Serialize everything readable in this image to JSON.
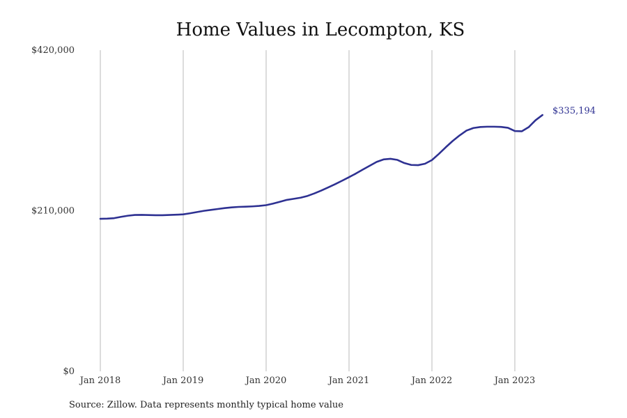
{
  "chart_data": {
    "type": "line",
    "title": "Home Values in Lecompton, KS",
    "xlabel": "",
    "ylabel": "",
    "x_tick_labels": [
      "Jan 2018",
      "Jan 2019",
      "Jan 2020",
      "Jan 2021",
      "Jan 2022",
      "Jan 2023"
    ],
    "y_tick_labels": [
      "$420,000",
      "$210,000",
      "$0"
    ],
    "ylim": [
      0,
      420000
    ],
    "xlim": [
      "2018-01",
      "2023-12"
    ],
    "grid": "vertical",
    "legend": "none",
    "end_label": "$335,194",
    "source": "Source: Zillow. Data represents monthly typical home value",
    "line_color": "#2e3192",
    "series": [
      {
        "x": [
          "2018-01",
          "2018-02",
          "2018-03",
          "2018-04",
          "2018-05",
          "2018-06",
          "2018-07",
          "2018-08",
          "2018-09",
          "2018-10",
          "2018-11",
          "2018-12",
          "2019-01",
          "2019-02",
          "2019-03",
          "2019-04",
          "2019-05",
          "2019-06",
          "2019-07",
          "2019-08",
          "2019-09",
          "2019-10",
          "2019-11",
          "2019-12",
          "2020-01",
          "2020-02",
          "2020-03",
          "2020-04",
          "2020-05",
          "2020-06",
          "2020-07",
          "2020-08",
          "2020-09",
          "2020-10",
          "2020-11",
          "2020-12",
          "2021-01",
          "2021-02",
          "2021-03",
          "2021-04",
          "2021-05",
          "2021-06",
          "2021-07",
          "2021-08",
          "2021-09",
          "2021-10",
          "2021-11",
          "2021-12",
          "2022-01",
          "2022-02",
          "2022-03",
          "2022-04",
          "2022-05",
          "2022-06",
          "2022-07",
          "2022-08",
          "2022-09",
          "2022-10",
          "2022-11",
          "2022-12",
          "2023-01",
          "2023-02",
          "2023-03",
          "2023-04",
          "2023-05"
        ],
        "values": [
          199500,
          199700,
          200300,
          202000,
          203500,
          204500,
          204600,
          204400,
          204100,
          204100,
          204500,
          204800,
          205300,
          206700,
          208300,
          209900,
          211100,
          212300,
          213500,
          214400,
          215000,
          215300,
          215700,
          216300,
          217300,
          219300,
          221700,
          224200,
          225600,
          227100,
          229400,
          232700,
          236500,
          240600,
          244800,
          249300,
          253900,
          258700,
          263900,
          268900,
          273900,
          277100,
          277900,
          276500,
          272400,
          269900,
          269600,
          271500,
          276300,
          284300,
          293000,
          301200,
          308500,
          314800,
          318200,
          319500,
          319900,
          319900,
          319600,
          318500,
          314300,
          313900,
          319300,
          328400,
          335194
        ]
      }
    ]
  }
}
